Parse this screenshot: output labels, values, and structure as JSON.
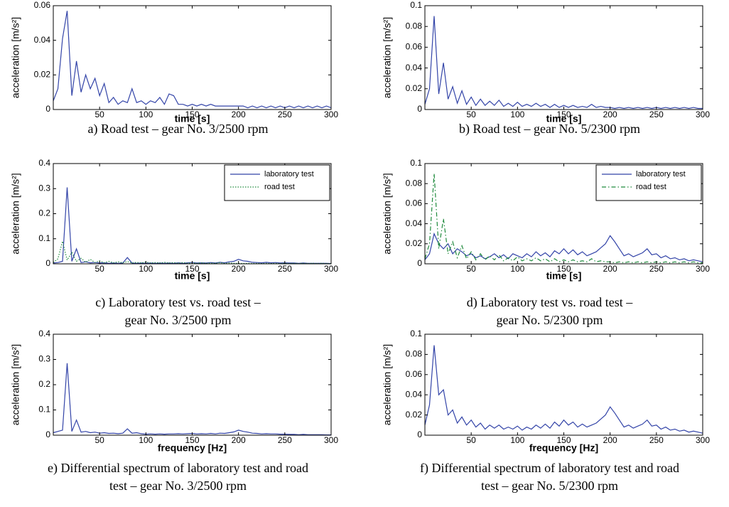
{
  "chart_data": [
    {
      "type": "line",
      "ylabel": "acceleration [m/s²]",
      "xlabel": "time [s]",
      "caption": [
        "a) Road test – gear No. 3/2500 rpm"
      ],
      "xlim": [
        0,
        300
      ],
      "xticks": [
        50,
        100,
        150,
        200,
        250,
        300
      ],
      "ylim": [
        0,
        0.06
      ],
      "yticks": [
        0,
        0.02,
        0.04,
        0.06
      ],
      "x": [
        0,
        5,
        10,
        15,
        20,
        25,
        30,
        35,
        40,
        45,
        50,
        55,
        60,
        65,
        70,
        75,
        80,
        85,
        90,
        95,
        100,
        105,
        110,
        115,
        120,
        125,
        130,
        135,
        140,
        145,
        150,
        155,
        160,
        165,
        170,
        175,
        180,
        185,
        190,
        195,
        200,
        205,
        210,
        215,
        220,
        225,
        230,
        235,
        240,
        245,
        250,
        255,
        260,
        265,
        270,
        275,
        280,
        285,
        290,
        295,
        300
      ],
      "series": [
        {
          "color": "#3344a8",
          "linestyle": "solid",
          "values": [
            0.005,
            0.012,
            0.041,
            0.057,
            0.008,
            0.028,
            0.01,
            0.02,
            0.012,
            0.018,
            0.008,
            0.015,
            0.004,
            0.007,
            0.003,
            0.005,
            0.004,
            0.012,
            0.004,
            0.005,
            0.003,
            0.005,
            0.004,
            0.007,
            0.003,
            0.009,
            0.008,
            0.003,
            0.003,
            0.002,
            0.003,
            0.002,
            0.003,
            0.002,
            0.003,
            0.002,
            0.002,
            0.002,
            0.002,
            0.002,
            0.002,
            0.002,
            0.001,
            0.002,
            0.001,
            0.002,
            0.001,
            0.002,
            0.001,
            0.002,
            0.001,
            0.002,
            0.001,
            0.002,
            0.001,
            0.002,
            0.001,
            0.002,
            0.001,
            0.002,
            0.001
          ]
        }
      ]
    },
    {
      "type": "line",
      "ylabel": "acceleration [m/s²]",
      "xlabel": "time [s]",
      "caption": [
        "b) Road test – gear No. 5/2300 rpm"
      ],
      "xlim": [
        0,
        300
      ],
      "xticks": [
        50,
        100,
        150,
        200,
        250,
        300
      ],
      "ylim": [
        0,
        0.1
      ],
      "yticks": [
        0,
        0.02,
        0.04,
        0.06,
        0.08,
        0.1
      ],
      "x": [
        0,
        5,
        10,
        15,
        20,
        25,
        30,
        35,
        40,
        45,
        50,
        55,
        60,
        65,
        70,
        75,
        80,
        85,
        90,
        95,
        100,
        105,
        110,
        115,
        120,
        125,
        130,
        135,
        140,
        145,
        150,
        155,
        160,
        165,
        170,
        175,
        180,
        185,
        190,
        195,
        200,
        205,
        210,
        215,
        220,
        225,
        230,
        235,
        240,
        245,
        250,
        255,
        260,
        265,
        270,
        275,
        280,
        285,
        290,
        295,
        300
      ],
      "series": [
        {
          "color": "#3344a8",
          "linestyle": "solid",
          "values": [
            0.005,
            0.02,
            0.09,
            0.015,
            0.045,
            0.01,
            0.022,
            0.006,
            0.018,
            0.005,
            0.012,
            0.004,
            0.01,
            0.004,
            0.008,
            0.004,
            0.009,
            0.003,
            0.006,
            0.003,
            0.007,
            0.003,
            0.005,
            0.003,
            0.006,
            0.003,
            0.005,
            0.002,
            0.005,
            0.002,
            0.004,
            0.002,
            0.004,
            0.002,
            0.003,
            0.002,
            0.005,
            0.002,
            0.003,
            0.002,
            0.002,
            0.001,
            0.002,
            0.001,
            0.002,
            0.001,
            0.002,
            0.001,
            0.002,
            0.001,
            0.002,
            0.001,
            0.002,
            0.001,
            0.002,
            0.001,
            0.002,
            0.001,
            0.002,
            0.001,
            0.001
          ]
        }
      ]
    },
    {
      "type": "line",
      "ylabel": "acceleration [m/s²]",
      "xlabel": "time [s]",
      "caption": [
        "c) Laboratory test vs. road test –",
        "gear No. 3/2500 rpm"
      ],
      "xlim": [
        0,
        300
      ],
      "xticks": [
        50,
        100,
        150,
        200,
        250,
        300
      ],
      "ylim": [
        0,
        0.4
      ],
      "yticks": [
        0,
        0.1,
        0.2,
        0.3,
        0.4
      ],
      "legend": "upper right",
      "x": [
        0,
        5,
        10,
        15,
        20,
        25,
        30,
        35,
        40,
        45,
        50,
        55,
        60,
        65,
        70,
        75,
        80,
        85,
        90,
        95,
        100,
        105,
        110,
        115,
        120,
        125,
        130,
        135,
        140,
        145,
        150,
        155,
        160,
        165,
        170,
        175,
        180,
        185,
        190,
        195,
        200,
        205,
        210,
        215,
        220,
        225,
        230,
        235,
        240,
        245,
        250,
        255,
        260,
        265,
        270,
        275,
        280,
        285,
        290,
        295,
        300
      ],
      "series": [
        {
          "name": "laboratory test",
          "color": "#3344a8",
          "linestyle": "solid",
          "values": [
            0.003,
            0.005,
            0.01,
            0.305,
            0.01,
            0.06,
            0.005,
            0.008,
            0.004,
            0.005,
            0.003,
            0.004,
            0.002,
            0.003,
            0.002,
            0.003,
            0.025,
            0.003,
            0.002,
            0.003,
            0.002,
            0.003,
            0.002,
            0.003,
            0.002,
            0.003,
            0.002,
            0.004,
            0.002,
            0.004,
            0.005,
            0.003,
            0.004,
            0.003,
            0.005,
            0.003,
            0.006,
            0.004,
            0.008,
            0.01,
            0.018,
            0.012,
            0.01,
            0.006,
            0.005,
            0.004,
            0.006,
            0.004,
            0.005,
            0.003,
            0.004,
            0.003,
            0.003,
            0.002,
            0.003,
            0.002,
            0.002,
            0.002,
            0.002,
            0.002,
            0.001
          ]
        },
        {
          "name": "road test",
          "color": "#1f8a3c",
          "linestyle": "dotted",
          "values": [
            0.005,
            0.02,
            0.09,
            0.015,
            0.045,
            0.01,
            0.022,
            0.006,
            0.018,
            0.005,
            0.012,
            0.004,
            0.01,
            0.004,
            0.008,
            0.004,
            0.009,
            0.003,
            0.006,
            0.003,
            0.007,
            0.003,
            0.005,
            0.003,
            0.006,
            0.003,
            0.005,
            0.002,
            0.005,
            0.002,
            0.004,
            0.002,
            0.004,
            0.002,
            0.003,
            0.002,
            0.005,
            0.002,
            0.003,
            0.002,
            0.002,
            0.001,
            0.002,
            0.001,
            0.002,
            0.001,
            0.002,
            0.001,
            0.002,
            0.001,
            0.002,
            0.001,
            0.002,
            0.001,
            0.002,
            0.001,
            0.002,
            0.001,
            0.002,
            0.001,
            0.001
          ]
        }
      ]
    },
    {
      "type": "line",
      "ylabel": "acceleration [m/s²]",
      "xlabel": "time [s]",
      "caption": [
        "d) Laboratory test vs. road test –",
        "gear No. 5/2300 rpm"
      ],
      "xlim": [
        0,
        300
      ],
      "xticks": [
        50,
        100,
        150,
        200,
        250,
        300
      ],
      "ylim": [
        0,
        0.1
      ],
      "yticks": [
        0,
        0.02,
        0.04,
        0.06,
        0.08,
        0.1
      ],
      "legend": "upper right",
      "x": [
        0,
        5,
        10,
        15,
        20,
        25,
        30,
        35,
        40,
        45,
        50,
        55,
        60,
        65,
        70,
        75,
        80,
        85,
        90,
        95,
        100,
        105,
        110,
        115,
        120,
        125,
        130,
        135,
        140,
        145,
        150,
        155,
        160,
        165,
        170,
        175,
        180,
        185,
        190,
        195,
        200,
        205,
        210,
        215,
        220,
        225,
        230,
        235,
        240,
        245,
        250,
        255,
        260,
        265,
        270,
        275,
        280,
        285,
        290,
        295,
        300
      ],
      "series": [
        {
          "name": "laboratory test",
          "color": "#3344a8",
          "linestyle": "solid",
          "values": [
            0.004,
            0.01,
            0.03,
            0.02,
            0.015,
            0.02,
            0.01,
            0.015,
            0.012,
            0.008,
            0.01,
            0.006,
            0.008,
            0.005,
            0.007,
            0.01,
            0.006,
            0.009,
            0.005,
            0.01,
            0.008,
            0.006,
            0.01,
            0.007,
            0.012,
            0.008,
            0.011,
            0.007,
            0.013,
            0.01,
            0.015,
            0.01,
            0.014,
            0.009,
            0.012,
            0.008,
            0.01,
            0.012,
            0.016,
            0.02,
            0.028,
            0.022,
            0.015,
            0.008,
            0.01,
            0.007,
            0.009,
            0.011,
            0.015,
            0.009,
            0.01,
            0.006,
            0.008,
            0.005,
            0.006,
            0.004,
            0.005,
            0.003,
            0.004,
            0.003,
            0.002
          ]
        },
        {
          "name": "road test",
          "color": "#1f8a3c",
          "linestyle": "dashdot",
          "values": [
            0.005,
            0.02,
            0.09,
            0.015,
            0.045,
            0.01,
            0.022,
            0.006,
            0.018,
            0.005,
            0.012,
            0.004,
            0.01,
            0.004,
            0.008,
            0.004,
            0.009,
            0.003,
            0.006,
            0.003,
            0.007,
            0.003,
            0.005,
            0.003,
            0.006,
            0.003,
            0.005,
            0.002,
            0.005,
            0.002,
            0.004,
            0.002,
            0.004,
            0.002,
            0.003,
            0.002,
            0.005,
            0.002,
            0.003,
            0.002,
            0.002,
            0.001,
            0.002,
            0.001,
            0.002,
            0.001,
            0.002,
            0.001,
            0.002,
            0.001,
            0.002,
            0.001,
            0.002,
            0.001,
            0.002,
            0.001,
            0.002,
            0.001,
            0.002,
            0.001,
            0.001
          ]
        }
      ]
    },
    {
      "type": "line",
      "ylabel": "acceleration [m/s²]",
      "xlabel": "frequency [Hz]",
      "caption": [
        "e) Differential spectrum of laboratory test and road",
        "test – gear No. 3/2500 rpm"
      ],
      "xlim": [
        0,
        300
      ],
      "xticks": [
        50,
        100,
        150,
        200,
        250,
        300
      ],
      "ylim": [
        0,
        0.4
      ],
      "yticks": [
        0,
        0.1,
        0.2,
        0.3,
        0.4
      ],
      "x": [
        0,
        5,
        10,
        15,
        20,
        25,
        30,
        35,
        40,
        45,
        50,
        55,
        60,
        65,
        70,
        75,
        80,
        85,
        90,
        95,
        100,
        105,
        110,
        115,
        120,
        125,
        130,
        135,
        140,
        145,
        150,
        155,
        160,
        165,
        170,
        175,
        180,
        185,
        190,
        195,
        200,
        205,
        210,
        215,
        220,
        225,
        230,
        235,
        240,
        245,
        250,
        255,
        260,
        265,
        270,
        275,
        280,
        285,
        290,
        295,
        300
      ],
      "series": [
        {
          "color": "#3344a8",
          "linestyle": "solid",
          "values": [
            0.01,
            0.015,
            0.02,
            0.285,
            0.015,
            0.06,
            0.012,
            0.015,
            0.01,
            0.012,
            0.008,
            0.01,
            0.007,
            0.008,
            0.006,
            0.008,
            0.025,
            0.008,
            0.01,
            0.006,
            0.004,
            0.005,
            0.004,
            0.005,
            0.004,
            0.005,
            0.005,
            0.006,
            0.005,
            0.006,
            0.007,
            0.005,
            0.006,
            0.005,
            0.007,
            0.005,
            0.008,
            0.007,
            0.01,
            0.013,
            0.02,
            0.015,
            0.012,
            0.008,
            0.007,
            0.005,
            0.006,
            0.005,
            0.005,
            0.004,
            0.004,
            0.003,
            0.003,
            0.002,
            0.003,
            0.002,
            0.002,
            0.002,
            0.002,
            0.001,
            0.001
          ]
        }
      ]
    },
    {
      "type": "line",
      "ylabel": "acceleration [m/s²]",
      "xlabel": "frequency [Hz]",
      "caption": [
        "f) Differential spectrum of laboratory test and road",
        "test – gear No. 5/2300 rpm"
      ],
      "xlim": [
        0,
        300
      ],
      "xticks": [
        50,
        100,
        150,
        200,
        250,
        300
      ],
      "ylim": [
        0,
        0.1
      ],
      "yticks": [
        0,
        0.02,
        0.04,
        0.06,
        0.08,
        0.1
      ],
      "x": [
        0,
        5,
        10,
        15,
        20,
        25,
        30,
        35,
        40,
        45,
        50,
        55,
        60,
        65,
        70,
        75,
        80,
        85,
        90,
        95,
        100,
        105,
        110,
        115,
        120,
        125,
        130,
        135,
        140,
        145,
        150,
        155,
        160,
        165,
        170,
        175,
        180,
        185,
        190,
        195,
        200,
        205,
        210,
        215,
        220,
        225,
        230,
        235,
        240,
        245,
        250,
        255,
        260,
        265,
        270,
        275,
        280,
        285,
        290,
        295,
        300
      ],
      "series": [
        {
          "color": "#3344a8",
          "linestyle": "solid",
          "values": [
            0.01,
            0.03,
            0.089,
            0.04,
            0.045,
            0.02,
            0.025,
            0.012,
            0.018,
            0.01,
            0.015,
            0.008,
            0.012,
            0.006,
            0.01,
            0.007,
            0.01,
            0.006,
            0.008,
            0.006,
            0.009,
            0.005,
            0.008,
            0.006,
            0.01,
            0.007,
            0.011,
            0.007,
            0.013,
            0.009,
            0.015,
            0.01,
            0.013,
            0.008,
            0.011,
            0.008,
            0.01,
            0.012,
            0.016,
            0.02,
            0.028,
            0.022,
            0.015,
            0.008,
            0.01,
            0.007,
            0.009,
            0.011,
            0.015,
            0.009,
            0.01,
            0.006,
            0.008,
            0.005,
            0.006,
            0.004,
            0.005,
            0.003,
            0.004,
            0.003,
            0.002
          ]
        }
      ]
    }
  ]
}
